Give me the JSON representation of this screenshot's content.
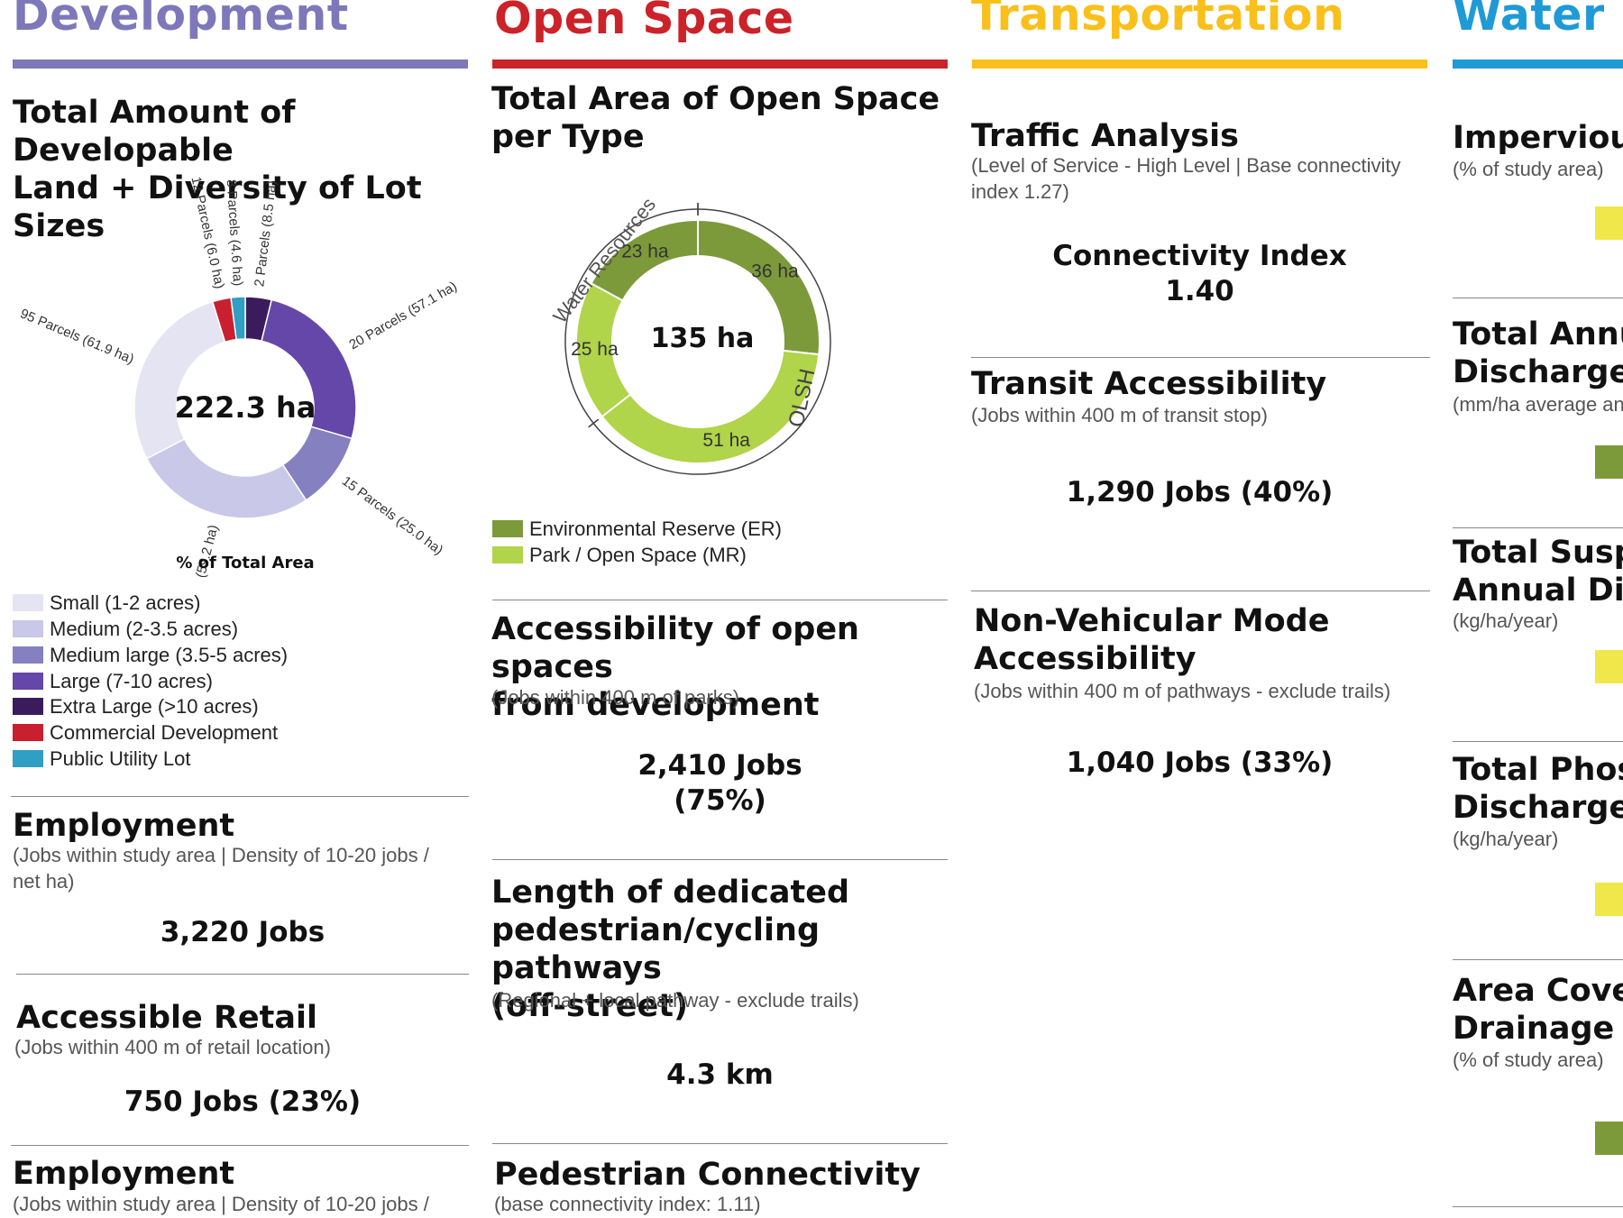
{
  "columns": {
    "development": {
      "title": "Development",
      "color": "#7d78b9"
    },
    "open_space": {
      "title": "Open Space",
      "color": "#cc2229"
    },
    "transportation": {
      "title": "Transportation",
      "color": "#f9c01c"
    },
    "water": {
      "title": "Water R",
      "color": "#1e9ad6"
    }
  },
  "development": {
    "land_title_1": "Total Amount of Developable",
    "land_title_2": "Land + Diversity of Lot Sizes",
    "donut_center": "222.3 ha",
    "donut_caption": "% of Total Area",
    "legend": [
      {
        "label": "Small (1-2 acres)",
        "color": "#e4e4f3"
      },
      {
        "label": "Medium (2-3.5 acres)",
        "color": "#c9c8e8"
      },
      {
        "label": "Medium large (3.5-5 acres)",
        "color": "#8580c0"
      },
      {
        "label": "Large (7-10 acres)",
        "color": "#6447a8"
      },
      {
        "label": "Extra Large (>10 acres)",
        "color": "#3a1c5c"
      },
      {
        "label": "Commercial Development",
        "color": "#c8202e"
      },
      {
        "label": "Public Utility Lot",
        "color": "#2f9fc4"
      }
    ],
    "employment": {
      "title": "Employment",
      "sub1": "(Jobs within study area | Density of 10-20 jobs /",
      "sub2": "net ha)",
      "value": "3,220 Jobs"
    },
    "retail": {
      "title": "Accessible Retail",
      "sub": "(Jobs within 400 m of retail location)",
      "value": "750 Jobs (23%)"
    },
    "employment2": {
      "title": "Employment",
      "sub": "(Jobs within study area | Density of 10-20 jobs /"
    }
  },
  "open_space": {
    "title_1": "Total Area  of Open Space",
    "title_2": "per Type",
    "donut_center": "135 ha",
    "arc_label_wr": "Water Resources",
    "arc_label_olsh": "OLSH",
    "legend": [
      {
        "label": "Environmental Reserve (ER)",
        "color": "#7d9a3b"
      },
      {
        "label": "Park / Open Space (MR)",
        "color": "#b0d44a"
      }
    ],
    "access": {
      "title_1": "Accessibility of open spaces",
      "title_2": "from development",
      "sub": "(Jobs within 400 m  of parks)",
      "value_1": "2,410 Jobs",
      "value_2": "(75%)"
    },
    "pathways": {
      "title_1": "Length of dedicated",
      "title_2": "pedestrian/cycling pathways",
      "title_3": "(off-street)",
      "sub": "(Regional + local pathway - exclude trails)",
      "value": "4.3 km"
    },
    "ped": {
      "title": "Pedestrian Connectivity",
      "sub": "(base connectivity index: 1.11)"
    }
  },
  "transportation": {
    "traffic": {
      "title": "Traffic Analysis",
      "sub1": "(Level of Service - High Level | Base connectivity",
      "sub2": "index 1.27)",
      "value_1": "Connectivity Index",
      "value_2": "1.40"
    },
    "transit": {
      "title": "Transit Accessibility",
      "sub": "(Jobs within 400 m of transit stop)",
      "value": "1,290 Jobs (40%)"
    },
    "nonveh": {
      "title_1": "Non-Vehicular Mode",
      "title_2": "Accessibility",
      "sub": "(Jobs within 400 m of  pathways - exclude trails)",
      "value": "1,040 Jobs (33%)"
    }
  },
  "water": {
    "impervious": {
      "title": "Impervious",
      "sub": "(%  of study area)"
    },
    "annual": {
      "title_1": "Total Annua",
      "title_2": "Discharge",
      "sub": "(mm/ha average an"
    },
    "suspended": {
      "title_1": "Total Suspe",
      "title_2": "Annual Disc",
      "sub": "(kg/ha/year)"
    },
    "phosphorus": {
      "title_1": "Total Phosp",
      "title_2": "Discharge",
      "sub": "(kg/ha/year)"
    },
    "drainage": {
      "title_1": "Area Cover",
      "title_2": "Drainage",
      "sub": "(% of study area)"
    },
    "bar_colors": [
      "#f0e84a",
      "#7d9a3b",
      "#f0e84a",
      "#f0e84a",
      "#7d9a3b"
    ]
  },
  "chart_data": [
    {
      "type": "pie",
      "title": "Total Amount of Developable Land + Diversity of Lot Sizes",
      "center_label": "222.3 ha",
      "caption": "% of Total Area",
      "slices": [
        {
          "label": "2 Parcels (8.5 ha)",
          "category": "Extra Large (>10 acres)",
          "value": 8.5,
          "color": "#3a1c5c"
        },
        {
          "label": "20 Parcels (57.1 ha)",
          "category": "Large (7-10 acres)",
          "value": 57.1,
          "color": "#6447a8"
        },
        {
          "label": "15 Parcels (25.0 ha)",
          "category": "Medium large (3.5-5 acres)",
          "value": 25.0,
          "color": "#8580c0"
        },
        {
          "label": "55 Parcels (59.2 ha)",
          "category": "Medium (2-3.5 acres)",
          "value": 59.2,
          "color": "#c9c8e8"
        },
        {
          "label": "95 Parcels (61.9 ha)",
          "category": "Small (1-2 acres)",
          "value": 61.9,
          "color": "#e4e4f3"
        },
        {
          "label": "12 Parcels (6.0 ha)",
          "category": "Commercial Development",
          "value": 6.0,
          "color": "#c8202e"
        },
        {
          "label": "8 Parcels (4.6 ha)",
          "category": "Public Utility Lot",
          "value": 4.6,
          "color": "#2f9fc4"
        }
      ]
    },
    {
      "type": "pie",
      "title": "Total Area  of Open Space per Type",
      "center_label": "135 ha",
      "slices": [
        {
          "label": "36 ha",
          "category": "Environmental Reserve (ER)",
          "value": 36,
          "color": "#7d9a3b"
        },
        {
          "label": "51 ha",
          "category": "Park / Open Space (MR)",
          "value": 51,
          "color": "#b0d44a"
        },
        {
          "label": "25 ha",
          "category": "Park / Open Space (MR)",
          "value": 25,
          "color": "#b0d44a"
        },
        {
          "label": "23 ha",
          "category": "Environmental Reserve (ER)",
          "value": 23,
          "color": "#7d9a3b"
        }
      ]
    }
  ]
}
